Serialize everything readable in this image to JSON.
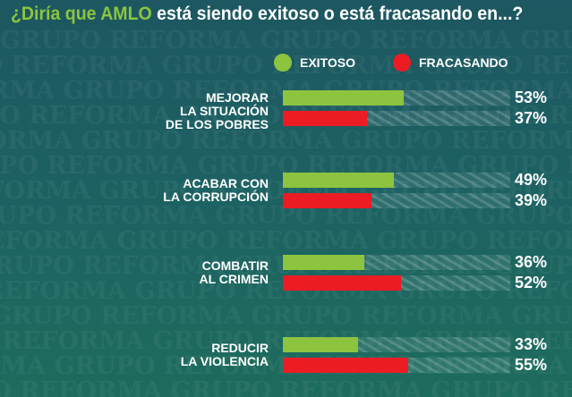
{
  "chart_data": {
    "type": "bar",
    "orientation": "horizontal",
    "title_highlight": "¿Diría que AMLO",
    "title_rest": " está siendo exitoso o está fracasando en...?",
    "categories": [
      "MEJORAR LA SITUACIÓN DE LOS POBRES",
      "ACABAR CON LA CORRUPCIÓN",
      "COMBATIR AL CRIMEN",
      "REDUCIR LA VIOLENCIA"
    ],
    "category_lines": [
      [
        "MEJORAR",
        "LA SITUACIÓN",
        "DE LOS POBRES"
      ],
      [
        "ACABAR CON",
        "LA CORRUPCIÓN"
      ],
      [
        "COMBATIR",
        "AL CRIMEN"
      ],
      [
        "REDUCIR",
        "LA VIOLENCIA"
      ]
    ],
    "series": [
      {
        "name": "EXITOSO",
        "color": "#8cc43f",
        "values": [
          53,
          49,
          36,
          33
        ]
      },
      {
        "name": "FRACASANDO",
        "color": "#ec1c24",
        "values": [
          37,
          39,
          52,
          55
        ]
      }
    ],
    "xlim": [
      0,
      100
    ],
    "unit": "%",
    "legend": "top",
    "watermark": "GRUPO REFORMA"
  }
}
